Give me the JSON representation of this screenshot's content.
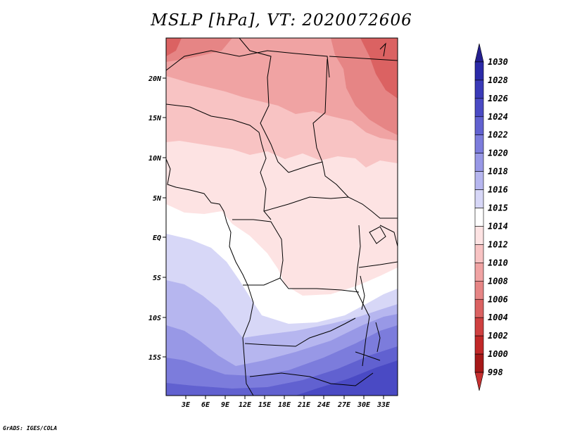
{
  "title": "MSLP [hPa], VT: 2020072606",
  "credit": "GrADS: IGES/COLA",
  "map": {
    "y_ticks": [
      "20N",
      "15N",
      "10N",
      "5N",
      "EQ",
      "5S",
      "10S",
      "15S"
    ],
    "x_ticks": [
      "3E",
      "6E",
      "9E",
      "12E",
      "15E",
      "18E",
      "21E",
      "24E",
      "27E",
      "30E",
      "33E"
    ]
  },
  "colorbar": {
    "labels": [
      "1030",
      "1028",
      "1026",
      "1024",
      "1022",
      "1020",
      "1018",
      "1016",
      "1015",
      "1014",
      "1012",
      "1010",
      "1008",
      "1006",
      "1004",
      "1002",
      "1000",
      "998"
    ],
    "colors": [
      "#241f8f",
      "#2b2aa8",
      "#3a3ab8",
      "#4a4ac4",
      "#6161d0",
      "#7c7cdc",
      "#9898e6",
      "#b6b6ef",
      "#d7d7f7",
      "#ffffff",
      "#fde3e3",
      "#f8c3c3",
      "#f0a3a3",
      "#e68585",
      "#db6262",
      "#cf4040",
      "#c12828",
      "#a61818",
      "#c63030"
    ]
  }
}
